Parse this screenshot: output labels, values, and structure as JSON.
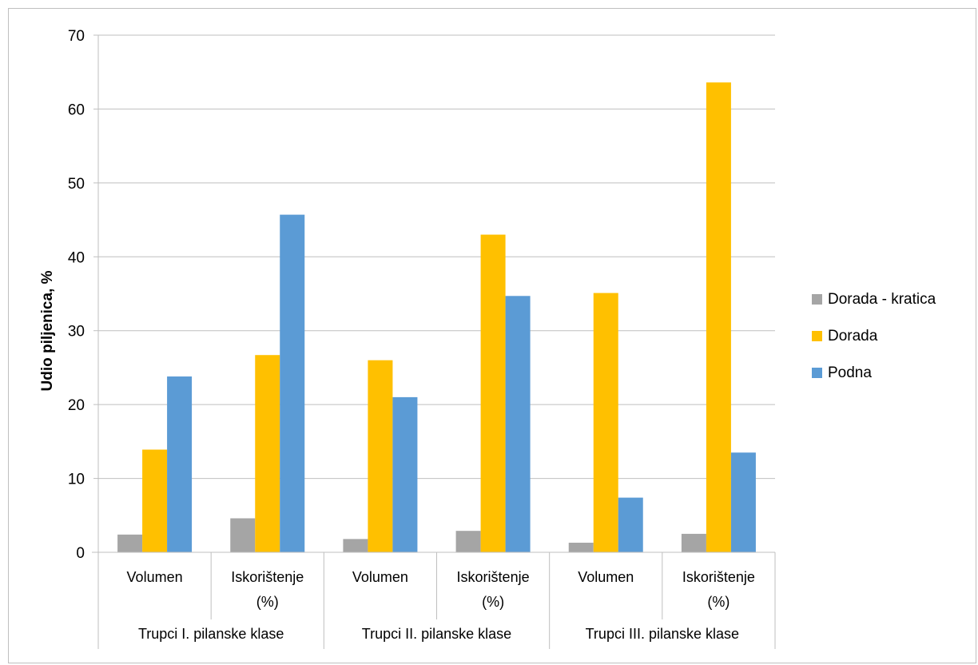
{
  "chart_data": {
    "type": "bar",
    "title": "",
    "ylabel": "Udio piljenica, %",
    "ylim": [
      0,
      70
    ],
    "yticks": [
      0,
      10,
      20,
      30,
      40,
      50,
      60,
      70
    ],
    "grid": true,
    "legend_position": "right",
    "categories": [
      "Volumen",
      "Iskorištenje (%)",
      "Volumen",
      "Iskorištenje (%)",
      "Volumen",
      "Iskorištenje (%)"
    ],
    "category_lines": [
      [
        "Volumen"
      ],
      [
        "Iskorištenje",
        "(%)"
      ],
      [
        "Volumen"
      ],
      [
        "Iskorištenje",
        "(%)"
      ],
      [
        "Volumen"
      ],
      [
        "Iskorištenje",
        "(%)"
      ]
    ],
    "groups": [
      "Trupci I. pilanske klase",
      "Trupci II. pilanske klase",
      "Trupci III. pilanske klase"
    ],
    "series": [
      {
        "name": "Dorada - kratica",
        "color": "#a5a5a5",
        "values": [
          2.4,
          4.6,
          1.8,
          2.9,
          1.3,
          2.5
        ]
      },
      {
        "name": "Dorada",
        "color": "#ffc000",
        "values": [
          13.9,
          26.7,
          26.0,
          43.0,
          35.1,
          63.6
        ]
      },
      {
        "name": "Podna",
        "color": "#5b9bd5",
        "values": [
          23.8,
          45.7,
          21.0,
          34.7,
          7.4,
          13.5
        ]
      }
    ]
  }
}
